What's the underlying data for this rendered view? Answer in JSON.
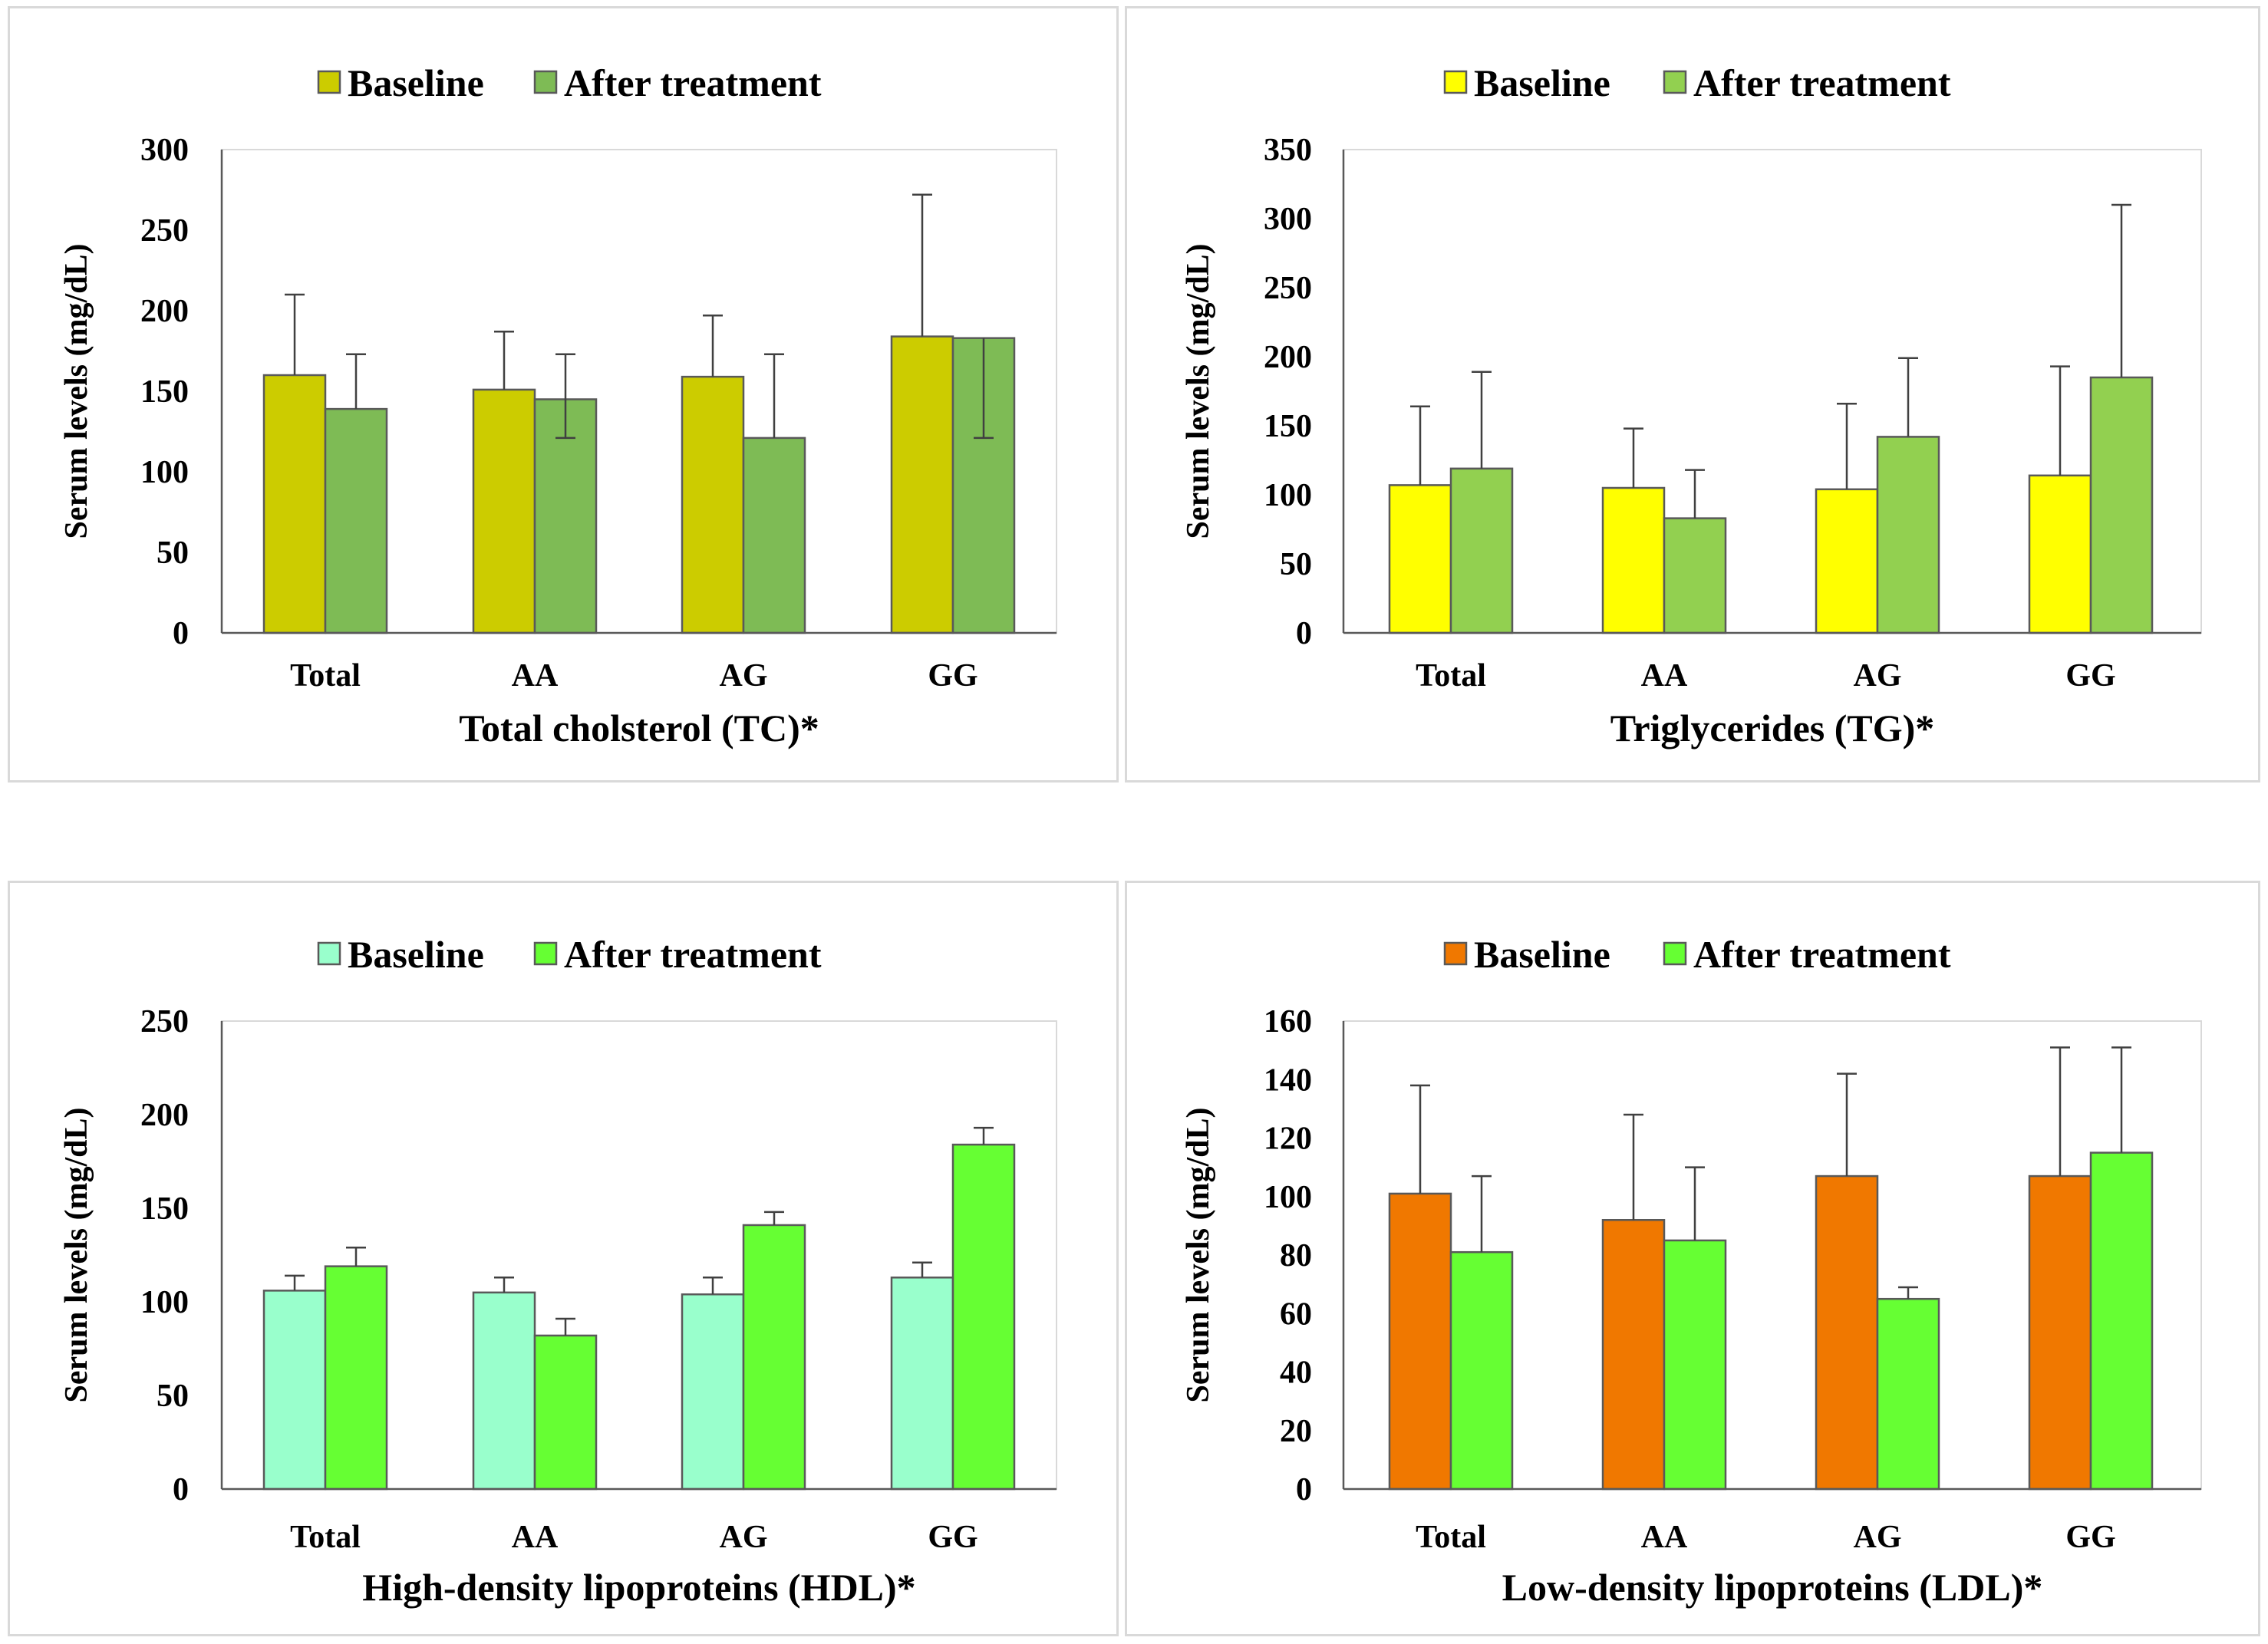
{
  "chart_data": [
    {
      "type": "bar",
      "title": "Total cholsterol (TC)*",
      "ylabel": "Serum levels (mg/dL)",
      "categories": [
        "Total",
        "AA",
        "AG",
        "GG"
      ],
      "ylim": [
        0,
        300
      ],
      "yticks": [
        0,
        50,
        100,
        150,
        200,
        250,
        300
      ],
      "grid": false,
      "legend": "top",
      "series": [
        {
          "name": "Baseline",
          "color": "#cccc00",
          "values": [
            160,
            151,
            159,
            184
          ],
          "error_plus": [
            50,
            36,
            38,
            88
          ],
          "error_minus": [
            0,
            0,
            0,
            0
          ]
        },
        {
          "name": "After treatment",
          "color": "#7ebb55",
          "values": [
            139,
            145,
            121,
            183
          ],
          "error_plus": [
            34,
            28,
            52,
            0
          ],
          "error_minus": [
            0,
            24,
            0,
            62
          ]
        }
      ]
    },
    {
      "type": "bar",
      "title": "Triglycerides (TG)*",
      "ylabel": "Serum levels (mg/dL)",
      "categories": [
        "Total",
        "AA",
        "AG",
        "GG"
      ],
      "ylim": [
        0,
        350
      ],
      "yticks": [
        0,
        50,
        100,
        150,
        200,
        250,
        300,
        350
      ],
      "grid": false,
      "legend": "top",
      "series": [
        {
          "name": "Baseline",
          "color": "#ffff00",
          "values": [
            107,
            105,
            104,
            114
          ],
          "error_plus": [
            57,
            43,
            62,
            79
          ],
          "error_minus": [
            0,
            0,
            0,
            0
          ]
        },
        {
          "name": "After treatment",
          "color": "#92d050",
          "values": [
            119,
            83,
            142,
            185
          ],
          "error_plus": [
            70,
            35,
            57,
            125
          ],
          "error_minus": [
            0,
            0,
            0,
            0
          ]
        }
      ]
    },
    {
      "type": "bar",
      "title": "High-density lipoproteins (HDL)*",
      "ylabel": "Serum levels (mg/dL)",
      "categories": [
        "Total",
        "AA",
        "AG",
        "GG"
      ],
      "ylim": [
        0,
        250
      ],
      "yticks": [
        0,
        50,
        100,
        150,
        200,
        250
      ],
      "grid": false,
      "legend": "top",
      "series": [
        {
          "name": "Baseline",
          "color": "#99ffcc",
          "values": [
            106,
            105,
            104,
            113
          ],
          "error_plus": [
            8,
            8,
            9,
            8
          ],
          "error_minus": [
            0,
            0,
            0,
            0
          ]
        },
        {
          "name": "After treatment",
          "color": "#66ff33",
          "values": [
            119,
            82,
            141,
            184
          ],
          "error_plus": [
            10,
            9,
            7,
            9
          ],
          "error_minus": [
            0,
            0,
            0,
            0
          ]
        }
      ]
    },
    {
      "type": "bar",
      "title": "Low-density lipoproteins (LDL)*",
      "ylabel": "Serum levels (mg/dL)",
      "categories": [
        "Total",
        "AA",
        "AG",
        "GG"
      ],
      "ylim": [
        0,
        160
      ],
      "yticks": [
        0,
        20,
        40,
        60,
        80,
        100,
        120,
        140,
        160
      ],
      "grid": false,
      "legend": "top",
      "series": [
        {
          "name": "Baseline",
          "color": "#f07800",
          "values": [
            101,
            92,
            107,
            107
          ],
          "error_plus": [
            37,
            36,
            35,
            44
          ],
          "error_minus": [
            0,
            0,
            0,
            0
          ]
        },
        {
          "name": "After treatment",
          "color": "#66ff33",
          "values": [
            81,
            85,
            65,
            115
          ],
          "error_plus": [
            26,
            25,
            4,
            36
          ],
          "error_minus": [
            0,
            0,
            0,
            0
          ]
        }
      ]
    }
  ]
}
